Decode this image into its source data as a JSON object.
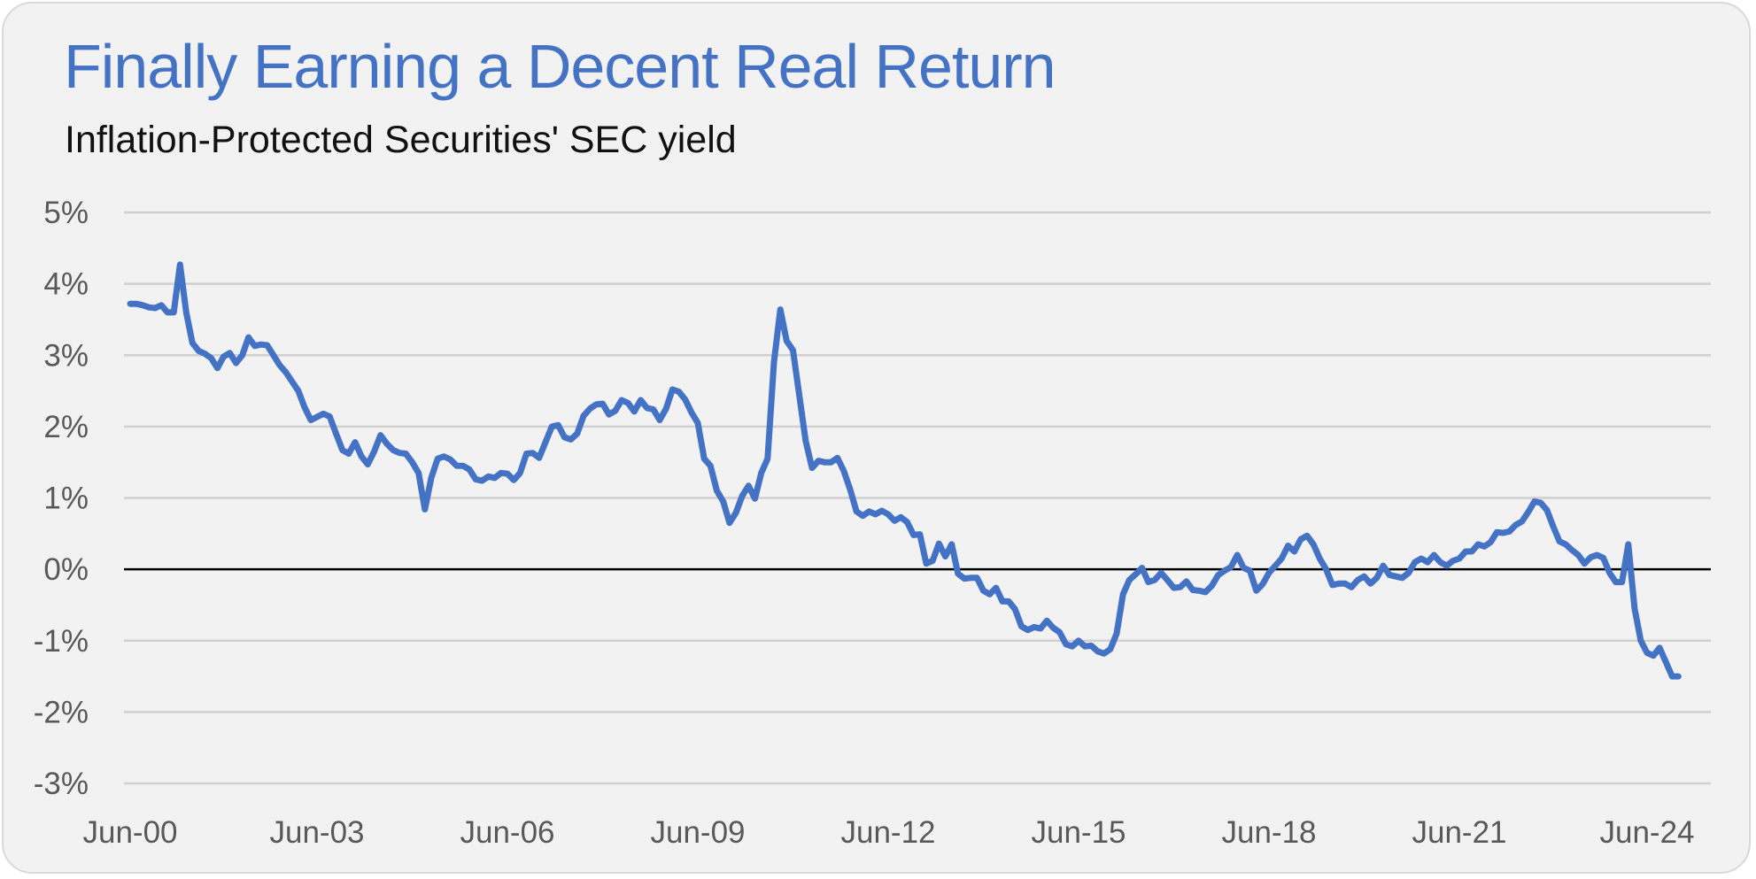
{
  "chart_data": {
    "type": "line",
    "title": "Finally Earning a Decent Real Return",
    "subtitle": "Inflation-Protected Securities' SEC yield",
    "xlabel": "",
    "ylabel": "",
    "ylim": [
      -3,
      5
    ],
    "y_ticks": [
      "5%",
      "4%",
      "3%",
      "2%",
      "1%",
      "0%",
      "-1%",
      "-2%",
      "-3%"
    ],
    "y_tick_values": [
      5,
      4,
      3,
      2,
      1,
      0,
      -1,
      -2,
      -3
    ],
    "x_ticks": [
      "Jun-00",
      "Jun-03",
      "Jun-06",
      "Jun-09",
      "Jun-12",
      "Jun-15",
      "Jun-18",
      "Jun-21",
      "Jun-24"
    ],
    "x_tick_values": [
      2000.5,
      2003.5,
      2006.5,
      2009.5,
      2012.5,
      2015.5,
      2018.5,
      2021.5,
      2024.5
    ],
    "xlim": [
      2000.5,
      2025.0
    ],
    "grid": true,
    "line_color": "#4472c4",
    "zero_line_color": "#000000",
    "series": [
      {
        "points": [
          [
            2000.5,
            3.72
          ],
          [
            2000.6,
            3.72
          ],
          [
            2000.7,
            3.7
          ],
          [
            2000.8,
            3.67
          ],
          [
            2000.9,
            3.66
          ],
          [
            2001.0,
            3.7
          ],
          [
            2001.1,
            3.6
          ],
          [
            2001.2,
            3.6
          ],
          [
            2001.3,
            4.27
          ],
          [
            2001.4,
            3.6
          ],
          [
            2001.5,
            3.17
          ],
          [
            2001.6,
            3.06
          ],
          [
            2001.7,
            3.02
          ],
          [
            2001.8,
            2.96
          ],
          [
            2001.9,
            2.82
          ],
          [
            2002.0,
            2.98
          ],
          [
            2002.1,
            3.03
          ],
          [
            2002.2,
            2.89
          ],
          [
            2002.3,
            3.0
          ],
          [
            2002.4,
            3.25
          ],
          [
            2002.5,
            3.13
          ],
          [
            2002.6,
            3.15
          ],
          [
            2002.7,
            3.14
          ],
          [
            2002.8,
            3.0
          ],
          [
            2002.9,
            2.86
          ],
          [
            2003.0,
            2.76
          ],
          [
            2003.2,
            2.5
          ],
          [
            2003.3,
            2.27
          ],
          [
            2003.4,
            2.09
          ],
          [
            2003.6,
            2.18
          ],
          [
            2003.7,
            2.14
          ],
          [
            2003.8,
            1.9
          ],
          [
            2003.9,
            1.67
          ],
          [
            2004.0,
            1.62
          ],
          [
            2004.1,
            1.78
          ],
          [
            2004.2,
            1.58
          ],
          [
            2004.3,
            1.47
          ],
          [
            2004.4,
            1.65
          ],
          [
            2004.5,
            1.88
          ],
          [
            2004.6,
            1.76
          ],
          [
            2004.7,
            1.67
          ],
          [
            2004.8,
            1.63
          ],
          [
            2004.9,
            1.62
          ],
          [
            2005.0,
            1.5
          ],
          [
            2005.1,
            1.35
          ],
          [
            2005.2,
            0.84
          ],
          [
            2005.3,
            1.28
          ],
          [
            2005.4,
            1.55
          ],
          [
            2005.5,
            1.58
          ],
          [
            2005.6,
            1.54
          ],
          [
            2005.7,
            1.45
          ],
          [
            2005.8,
            1.45
          ],
          [
            2005.9,
            1.4
          ],
          [
            2006.0,
            1.26
          ],
          [
            2006.1,
            1.24
          ],
          [
            2006.2,
            1.3
          ],
          [
            2006.3,
            1.28
          ],
          [
            2006.4,
            1.35
          ],
          [
            2006.5,
            1.34
          ],
          [
            2006.6,
            1.25
          ],
          [
            2006.7,
            1.35
          ],
          [
            2006.8,
            1.62
          ],
          [
            2006.9,
            1.63
          ],
          [
            2007.0,
            1.56
          ],
          [
            2007.1,
            1.78
          ],
          [
            2007.2,
            2.0
          ],
          [
            2007.3,
            2.02
          ],
          [
            2007.4,
            1.85
          ],
          [
            2007.5,
            1.82
          ],
          [
            2007.6,
            1.9
          ],
          [
            2007.7,
            2.15
          ],
          [
            2007.8,
            2.25
          ],
          [
            2007.9,
            2.31
          ],
          [
            2008.0,
            2.32
          ],
          [
            2008.1,
            2.17
          ],
          [
            2008.2,
            2.22
          ],
          [
            2008.3,
            2.37
          ],
          [
            2008.4,
            2.33
          ],
          [
            2008.5,
            2.21
          ],
          [
            2008.6,
            2.37
          ],
          [
            2008.7,
            2.26
          ],
          [
            2008.8,
            2.24
          ],
          [
            2008.9,
            2.09
          ],
          [
            2009.0,
            2.25
          ],
          [
            2009.1,
            2.52
          ],
          [
            2009.2,
            2.49
          ],
          [
            2009.3,
            2.38
          ],
          [
            2009.4,
            2.2
          ],
          [
            2009.5,
            2.05
          ],
          [
            2009.6,
            1.55
          ],
          [
            2009.7,
            1.45
          ],
          [
            2009.8,
            1.1
          ],
          [
            2009.9,
            0.95
          ],
          [
            2010.0,
            0.65
          ],
          [
            2010.1,
            0.79
          ],
          [
            2010.2,
            1.03
          ],
          [
            2010.3,
            1.17
          ],
          [
            2010.4,
            0.99
          ],
          [
            2010.5,
            1.35
          ],
          [
            2010.6,
            1.55
          ],
          [
            2010.7,
            2.9
          ],
          [
            2010.8,
            3.64
          ],
          [
            2010.9,
            3.2
          ],
          [
            2011.0,
            3.07
          ],
          [
            2011.1,
            2.43
          ],
          [
            2011.2,
            1.8
          ],
          [
            2011.3,
            1.42
          ],
          [
            2011.4,
            1.52
          ],
          [
            2011.5,
            1.5
          ],
          [
            2011.6,
            1.5
          ],
          [
            2011.7,
            1.56
          ],
          [
            2011.8,
            1.38
          ],
          [
            2011.9,
            1.12
          ],
          [
            2012.0,
            0.81
          ],
          [
            2012.1,
            0.75
          ],
          [
            2012.2,
            0.81
          ],
          [
            2012.3,
            0.77
          ],
          [
            2012.4,
            0.82
          ],
          [
            2012.5,
            0.77
          ],
          [
            2012.6,
            0.68
          ],
          [
            2012.7,
            0.73
          ],
          [
            2012.8,
            0.66
          ],
          [
            2012.9,
            0.48
          ],
          [
            2013.0,
            0.49
          ],
          [
            2013.1,
            0.08
          ],
          [
            2013.2,
            0.12
          ],
          [
            2013.3,
            0.36
          ],
          [
            2013.4,
            0.18
          ],
          [
            2013.5,
            0.35
          ],
          [
            2013.6,
            -0.06
          ],
          [
            2013.7,
            -0.13
          ],
          [
            2013.8,
            -0.12
          ],
          [
            2013.9,
            -0.12
          ],
          [
            2014.0,
            -0.3
          ],
          [
            2014.1,
            -0.35
          ],
          [
            2014.2,
            -0.26
          ],
          [
            2014.3,
            -0.45
          ],
          [
            2014.4,
            -0.45
          ],
          [
            2014.5,
            -0.56
          ],
          [
            2014.6,
            -0.8
          ],
          [
            2014.7,
            -0.85
          ],
          [
            2014.8,
            -0.81
          ],
          [
            2014.9,
            -0.83
          ],
          [
            2015.0,
            -0.72
          ],
          [
            2015.1,
            -0.82
          ],
          [
            2015.2,
            -0.88
          ],
          [
            2015.3,
            -1.05
          ],
          [
            2015.4,
            -1.08
          ],
          [
            2015.5,
            -1.0
          ],
          [
            2015.6,
            -1.08
          ],
          [
            2015.7,
            -1.07
          ],
          [
            2015.8,
            -1.15
          ],
          [
            2015.9,
            -1.18
          ],
          [
            2016.0,
            -1.12
          ],
          [
            2016.1,
            -0.9
          ],
          [
            2016.2,
            -0.35
          ],
          [
            2016.3,
            -0.15
          ],
          [
            2016.4,
            -0.07
          ],
          [
            2016.5,
            0.02
          ],
          [
            2016.6,
            -0.18
          ],
          [
            2016.7,
            -0.15
          ],
          [
            2016.8,
            -0.05
          ],
          [
            2016.9,
            -0.15
          ],
          [
            2017.0,
            -0.26
          ],
          [
            2017.1,
            -0.25
          ],
          [
            2017.2,
            -0.17
          ],
          [
            2017.3,
            -0.29
          ],
          [
            2017.4,
            -0.3
          ],
          [
            2017.5,
            -0.32
          ],
          [
            2017.6,
            -0.23
          ],
          [
            2017.7,
            -0.08
          ],
          [
            2017.8,
            -0.02
          ],
          [
            2017.9,
            0.03
          ],
          [
            2018.0,
            0.2
          ],
          [
            2018.1,
            0.02
          ],
          [
            2018.2,
            -0.02
          ],
          [
            2018.3,
            -0.3
          ],
          [
            2018.4,
            -0.21
          ],
          [
            2018.5,
            -0.05
          ],
          [
            2018.6,
            0.05
          ],
          [
            2018.7,
            0.15
          ],
          [
            2018.8,
            0.33
          ],
          [
            2018.9,
            0.25
          ],
          [
            2019.0,
            0.42
          ],
          [
            2019.1,
            0.47
          ],
          [
            2019.2,
            0.35
          ],
          [
            2019.3,
            0.15
          ],
          [
            2019.4,
            0.0
          ],
          [
            2019.5,
            -0.22
          ],
          [
            2019.6,
            -0.2
          ],
          [
            2019.7,
            -0.2
          ],
          [
            2019.8,
            -0.25
          ],
          [
            2019.9,
            -0.15
          ],
          [
            2020.0,
            -0.1
          ],
          [
            2020.1,
            -0.2
          ],
          [
            2020.2,
            -0.12
          ],
          [
            2020.3,
            0.05
          ],
          [
            2020.4,
            -0.08
          ],
          [
            2020.5,
            -0.1
          ],
          [
            2020.6,
            -0.12
          ],
          [
            2020.7,
            -0.05
          ],
          [
            2020.8,
            0.1
          ],
          [
            2020.9,
            0.15
          ],
          [
            2021.0,
            0.1
          ],
          [
            2021.1,
            0.2
          ],
          [
            2021.2,
            0.1
          ],
          [
            2021.3,
            0.05
          ],
          [
            2021.4,
            0.12
          ],
          [
            2021.5,
            0.15
          ],
          [
            2021.6,
            0.25
          ],
          [
            2021.7,
            0.25
          ],
          [
            2021.8,
            0.35
          ],
          [
            2021.9,
            0.32
          ],
          [
            2022.0,
            0.38
          ],
          [
            2022.1,
            0.52
          ],
          [
            2022.2,
            0.51
          ],
          [
            2022.3,
            0.53
          ],
          [
            2022.4,
            0.62
          ],
          [
            2022.5,
            0.67
          ],
          [
            2022.6,
            0.8
          ],
          [
            2022.7,
            0.95
          ],
          [
            2022.8,
            0.93
          ],
          [
            2022.9,
            0.83
          ],
          [
            2023.0,
            0.6
          ],
          [
            2023.1,
            0.39
          ],
          [
            2023.2,
            0.35
          ],
          [
            2023.3,
            0.27
          ],
          [
            2023.4,
            0.2
          ],
          [
            2023.5,
            0.08
          ],
          [
            2023.6,
            0.17
          ],
          [
            2023.7,
            0.2
          ],
          [
            2023.8,
            0.16
          ],
          [
            2023.9,
            -0.05
          ],
          [
            2024.0,
            -0.18
          ],
          [
            2024.1,
            -0.18
          ],
          [
            2024.2,
            0.35
          ],
          [
            2024.3,
            -0.55
          ],
          [
            2024.4,
            -1.0
          ],
          [
            2024.5,
            -1.17
          ],
          [
            2024.6,
            -1.21
          ],
          [
            2024.7,
            -1.1
          ],
          [
            2024.8,
            -1.3
          ],
          [
            2024.9,
            -1.5
          ],
          [
            2025.0,
            -1.5
          ]
        ]
      }
    ]
  }
}
